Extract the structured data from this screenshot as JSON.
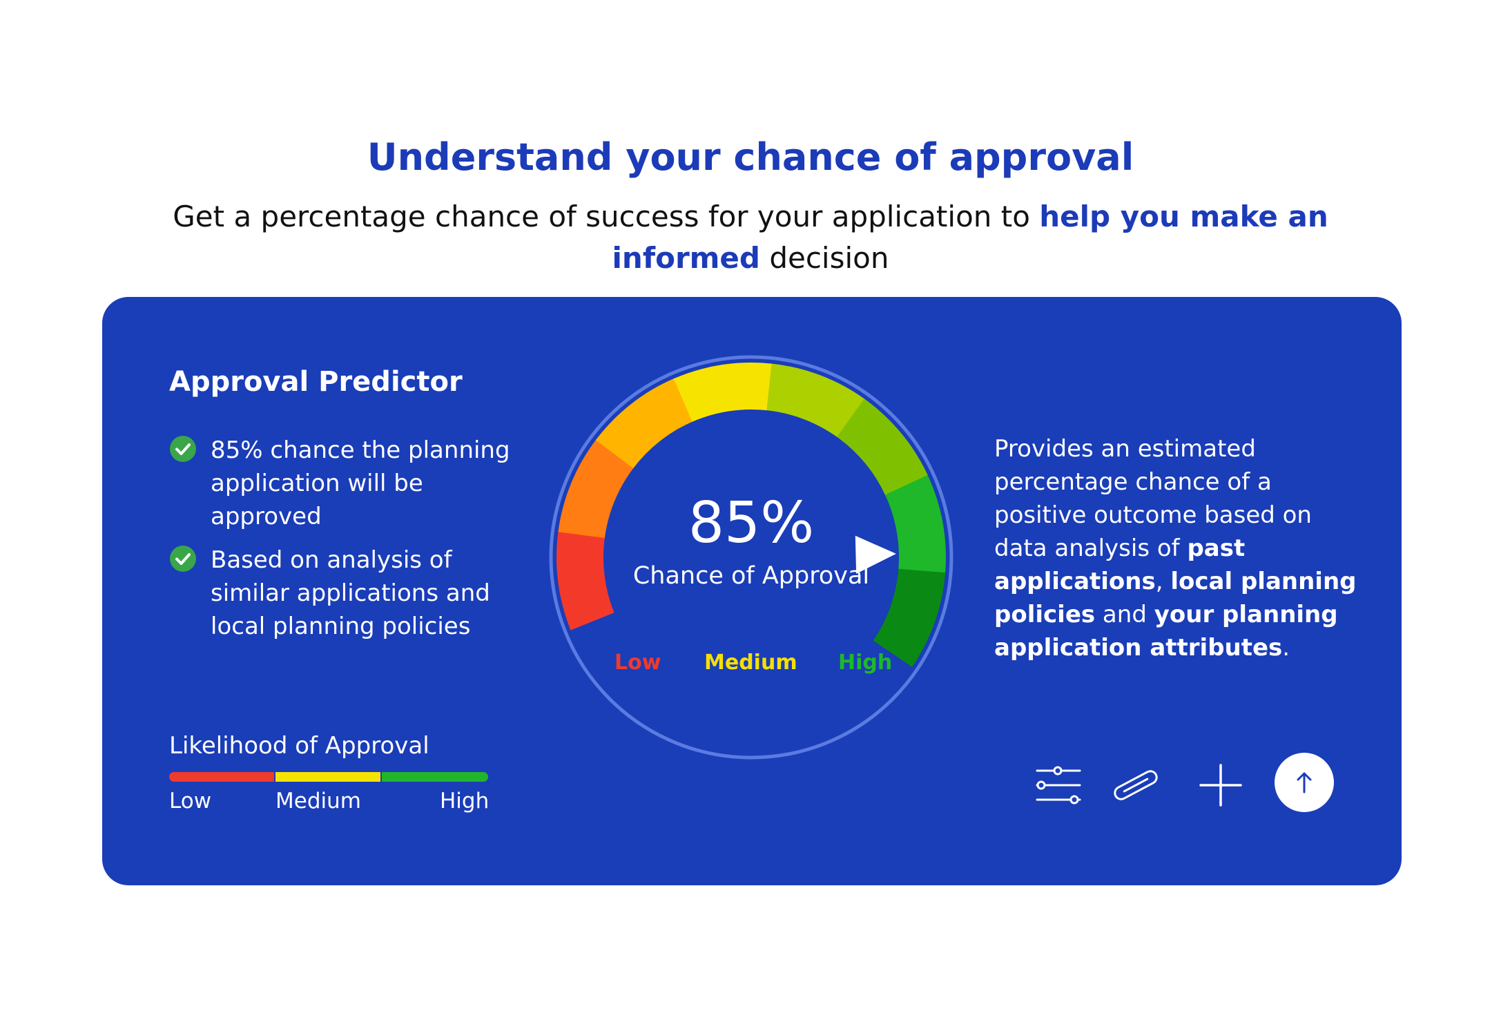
{
  "header": {
    "title": "Understand your chance of approval",
    "subtitle_before": "Get a percentage chance of success for your application to ",
    "subtitle_highlight": "help you make an informed",
    "subtitle_after": " decision"
  },
  "card": {
    "title": "Approval Predictor",
    "bullets": [
      {
        "text": "85% chance the planning application will be approved",
        "icon": "check-circle-icon"
      },
      {
        "text": "Based on analysis of similar applications and local planning policies",
        "icon": "check-circle-icon"
      }
    ],
    "gauge": {
      "percent_label": "85%",
      "caption": "Chance of Approval",
      "value": 0.85,
      "labels": {
        "low": "Low",
        "medium": "Medium",
        "high": "High"
      }
    },
    "description": {
      "part1": "Provides an estimated percentage chance of a positive outcome based on data analysis of ",
      "bold1": "past applications",
      "sep1": ", ",
      "bold2": "local planning policies",
      "sep2": " and ",
      "bold3": "your planning application attributes",
      "end": "."
    },
    "likelihood": {
      "title": "Likelihood of Approval",
      "low": "Low",
      "medium": "Medium",
      "high": "High"
    },
    "toolbar": [
      "sliders-icon",
      "paperclip-icon",
      "plus-icon",
      "arrow-up-icon"
    ]
  },
  "colors": {
    "accent": "#1c3bb8",
    "card_bg": "#1a3db8",
    "low": "#ee3b2b",
    "medium": "#f5e400",
    "high": "#22b52c"
  }
}
